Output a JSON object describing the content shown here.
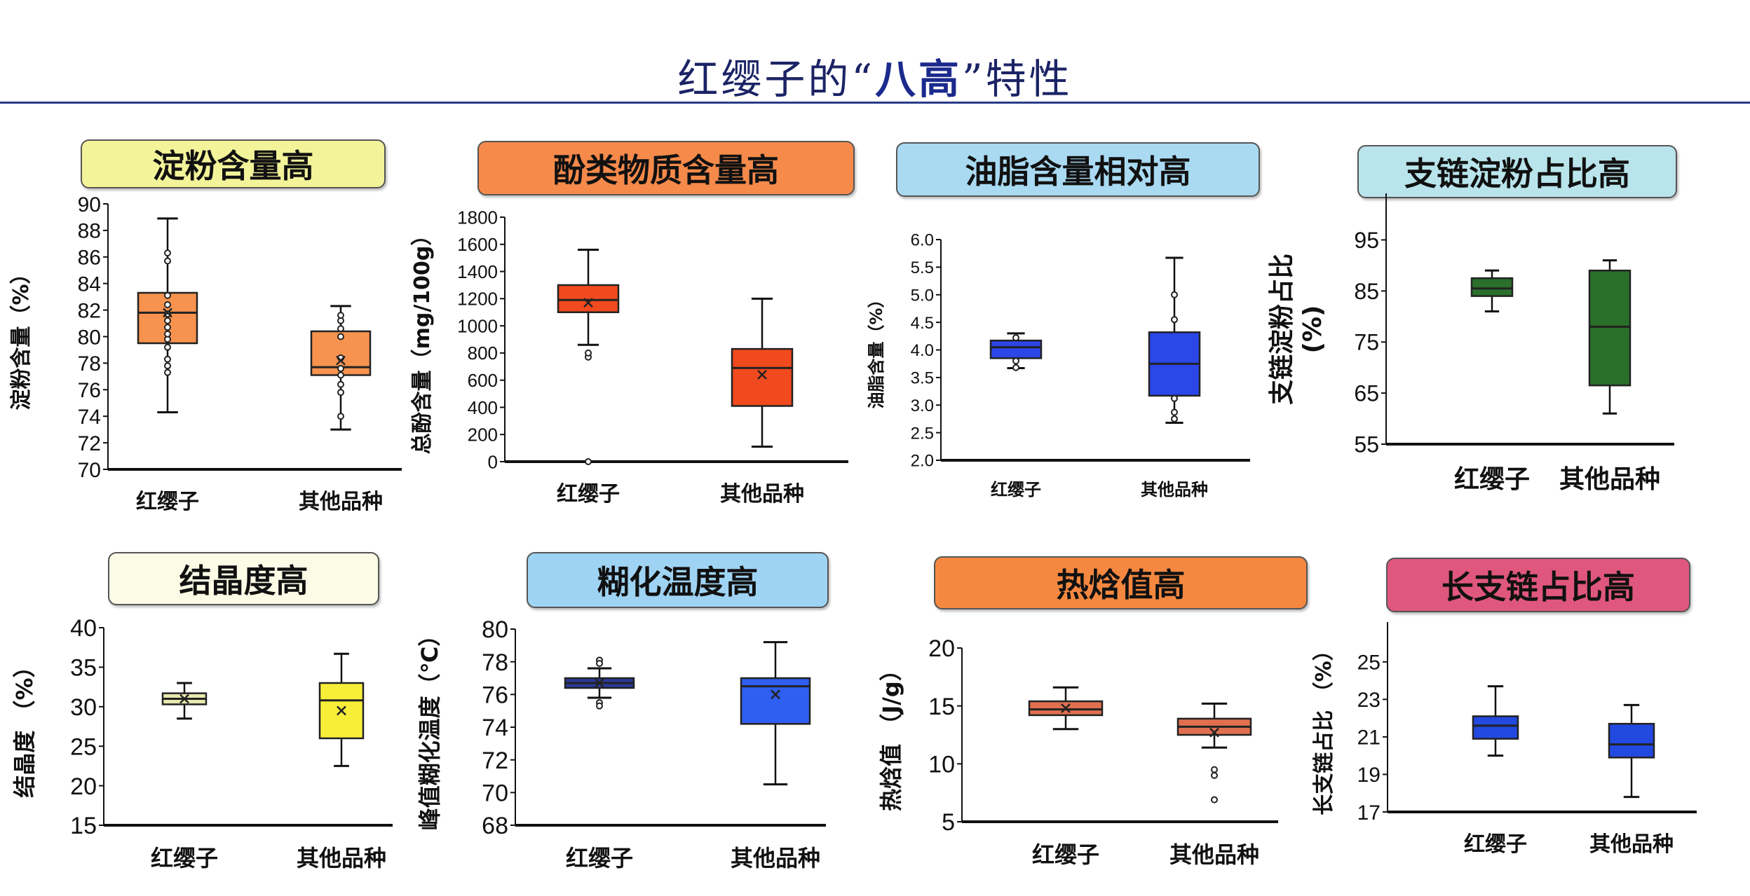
{
  "title": {
    "pre": "红缨子的“",
    "highlight": "八高",
    "post": "”特性"
  },
  "colors": {
    "title": "#1c2466",
    "rule": "#2a3a8a"
  },
  "chart_data": [
    {
      "type": "box",
      "title": "淀粉含量高",
      "header_color": "#f3f39a",
      "box_color": "#f7934f",
      "ylabel": "淀粉含量（%）",
      "ylim": [
        70,
        90
      ],
      "yticks": [
        70,
        72,
        74,
        76,
        78,
        80,
        82,
        84,
        86,
        88,
        90
      ],
      "categories": [
        "红缨子",
        "其他品种"
      ],
      "series": [
        {
          "whisker": [
            74.3,
            88.9
          ],
          "q1": 79.5,
          "median": 81.8,
          "q3": 83.3,
          "mean": 81.8,
          "points": [
            77.3,
            77.8,
            78.3,
            79.2,
            79.8,
            80.2,
            80.7,
            81.2,
            81.7,
            82.4,
            83.1,
            85.7,
            86.3
          ]
        },
        {
          "whisker": [
            73.0,
            82.3
          ],
          "q1": 77.1,
          "median": 77.7,
          "q3": 80.4,
          "mean": 78.2,
          "points": [
            74.0,
            75.8,
            76.4,
            77.1,
            77.6,
            78.4,
            80.0,
            80.6,
            81.2,
            81.6
          ]
        }
      ]
    },
    {
      "type": "box",
      "title": "酚类物质含量高",
      "header_color": "#f58a4b",
      "box_color": "#f04a1e",
      "ylabel": "总酚含量（mg/100g）",
      "ylim": [
        0,
        1800
      ],
      "yticks": [
        0,
        200,
        400,
        600,
        800,
        1000,
        1200,
        1400,
        1600,
        1800
      ],
      "categories": [
        "红缨子",
        "其他品种"
      ],
      "series": [
        {
          "whisker": [
            860,
            1560
          ],
          "q1": 1100,
          "median": 1190,
          "q3": 1300,
          "mean": 1170,
          "points": [
            770,
            800,
            0
          ]
        },
        {
          "whisker": [
            110,
            1200
          ],
          "q1": 410,
          "median": 690,
          "q3": 830,
          "mean": 640,
          "points": []
        }
      ]
    },
    {
      "type": "box",
      "title": "油脂含量相对高",
      "header_color": "#a9daf2",
      "box_color": "#2b47e8",
      "ylabel": "油脂含量（%）",
      "ylim": [
        2.0,
        6.0
      ],
      "yticks": [
        "2.0",
        "2.5",
        "3.0",
        "3.5",
        "4.0",
        "4.5",
        "5.0",
        "5.5",
        "6.0"
      ],
      "categories": [
        "红缨子",
        "其他品种"
      ],
      "series": [
        {
          "whisker": [
            3.67,
            4.3
          ],
          "q1": 3.85,
          "median": 4.05,
          "q3": 4.17,
          "points": [
            4.22,
            3.8,
            3.68
          ]
        },
        {
          "whisker": [
            2.68,
            5.67
          ],
          "q1": 3.17,
          "median": 3.75,
          "q3": 4.32,
          "points": [
            5.0,
            4.55,
            3.12,
            2.87,
            2.75
          ]
        }
      ]
    },
    {
      "type": "box",
      "title": "支链淀粉占比高",
      "header_color": "#b9e4ec",
      "box_color": "#2a6f2a",
      "ylabel": "支链淀粉占比",
      "ylabel2": "(%)",
      "ylim": [
        55,
        100
      ],
      "yticks": [
        55,
        65,
        75,
        85,
        95
      ],
      "categories": [
        "红缨子",
        "其他品种"
      ],
      "series": [
        {
          "whisker": [
            81,
            89
          ],
          "q1": 84,
          "median": 85.5,
          "q3": 87.5,
          "points": []
        },
        {
          "whisker": [
            61,
            91
          ],
          "q1": 66.5,
          "median": 78,
          "q3": 89,
          "points": []
        }
      ]
    },
    {
      "type": "box",
      "title": "结晶度高",
      "header_color": "#fbfbe6",
      "box_color": "#f7ee3a",
      "ylabel": "结晶度 （%）",
      "ylim": [
        15,
        40
      ],
      "yticks": [
        15,
        20,
        25,
        30,
        35,
        40
      ],
      "categories": [
        "红缨子",
        "其他品种"
      ],
      "series": [
        {
          "whisker": [
            28.5,
            33
          ],
          "q1": 30.3,
          "median": 31,
          "q3": 31.7,
          "mean": 31,
          "color": "#e9e8b0",
          "points": []
        },
        {
          "whisker": [
            22.5,
            36.7
          ],
          "q1": 26,
          "median": 30.8,
          "q3": 33,
          "mean": 29.5,
          "points": []
        }
      ]
    },
    {
      "type": "box",
      "title": "糊化温度高",
      "header_color": "#9fd3f3",
      "box_color": "#2f5ff0",
      "ylabel": "峰值糊化温度（℃）",
      "ylim": [
        68,
        80
      ],
      "yticks": [
        68,
        70,
        72,
        74,
        76,
        78,
        80
      ],
      "categories": [
        "红缨子",
        "其他品种"
      ],
      "series": [
        {
          "whisker": [
            75.8,
            77.6
          ],
          "q1": 76.4,
          "median": 76.7,
          "q3": 77.0,
          "mean": 76.7,
          "color": "#2a3a9a",
          "points": [
            78.1,
            77.9,
            75.5,
            75.3
          ]
        },
        {
          "whisker": [
            70.5,
            79.2
          ],
          "q1": 74.2,
          "median": 76.5,
          "q3": 77.0,
          "mean": 76.0,
          "points": []
        }
      ]
    },
    {
      "type": "box",
      "title": "热焓值高",
      "header_color": "#f58840",
      "box_color": "#e0704f",
      "ylabel": "热焓值 （J/g）",
      "ylim": [
        5,
        20
      ],
      "yticks": [
        5,
        10,
        15,
        20
      ],
      "categories": [
        "红缨子",
        "其他品种"
      ],
      "series": [
        {
          "whisker": [
            13,
            16.6
          ],
          "q1": 14.2,
          "median": 14.7,
          "q3": 15.4,
          "mean": 14.8,
          "points": []
        },
        {
          "whisker": [
            11.4,
            15.2
          ],
          "q1": 12.5,
          "median": 13.2,
          "q3": 13.9,
          "mean": 12.7,
          "points": [
            9.5,
            9.0,
            6.9
          ]
        }
      ]
    },
    {
      "type": "box",
      "title": "长支链占比高",
      "header_color": "#e0577d",
      "box_color": "#2249e0",
      "ylabel": "长支链占比 （%）",
      "ylim": [
        17,
        26
      ],
      "yticks": [
        17,
        19,
        21,
        23,
        25
      ],
      "categories": [
        "红缨子",
        "其他品种"
      ],
      "series": [
        {
          "whisker": [
            20,
            23.7
          ],
          "q1": 20.9,
          "median": 21.6,
          "q3": 22.1,
          "points": []
        },
        {
          "whisker": [
            17.8,
            22.7
          ],
          "q1": 19.9,
          "median": 20.6,
          "q3": 21.7,
          "points": []
        }
      ]
    }
  ]
}
